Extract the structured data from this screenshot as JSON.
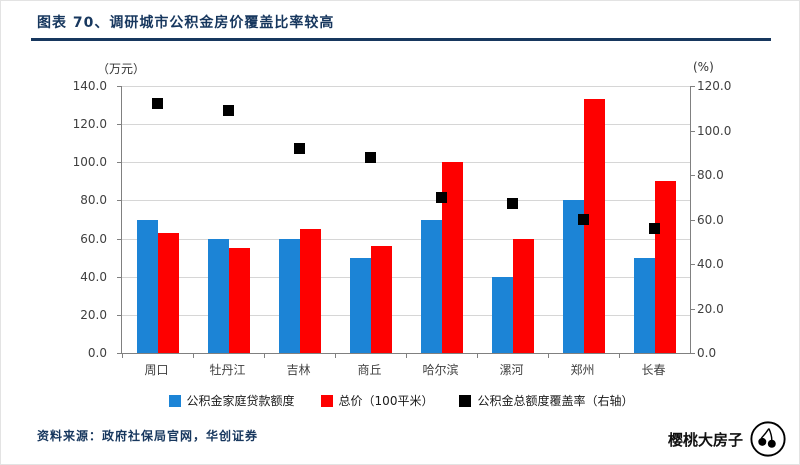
{
  "header": {
    "title": "图表 70、调研城市公积金房价覆盖比率较高"
  },
  "chart_data": {
    "type": "bar",
    "title": "调研城市公积金房价覆盖比率较高",
    "categories": [
      "周口",
      "牡丹江",
      "吉林",
      "商丘",
      "哈尔滨",
      "漯河",
      "郑州",
      "长春"
    ],
    "series": [
      {
        "name": "公积金家庭贷款额度",
        "type": "bar",
        "axis": "left",
        "color": "#1C84D6",
        "values": [
          70,
          60,
          60,
          50,
          70,
          40,
          80,
          50
        ]
      },
      {
        "name": "总价（100平米）",
        "type": "bar",
        "axis": "left",
        "color": "#FE0000",
        "values": [
          63,
          55,
          65,
          56,
          100,
          60,
          133,
          90
        ]
      },
      {
        "name": "公积金总额度覆盖率（右轴）",
        "type": "scatter",
        "axis": "right",
        "color": "#000000",
        "values": [
          112,
          109,
          92,
          88,
          70,
          67,
          60,
          56
        ]
      }
    ],
    "left_axis": {
      "unit": "（万元）",
      "min": 0,
      "max": 140,
      "step": 20,
      "tick_labels": [
        "140.0",
        "120.0",
        "100.0",
        "80.0",
        "60.0",
        "40.0",
        "20.0",
        "0.0"
      ]
    },
    "right_axis": {
      "unit": "(%)",
      "min": 0,
      "max": 120,
      "step": 20,
      "tick_labels": [
        "120.0",
        "100.0",
        "80.0",
        "60.0",
        "40.0",
        "20.0",
        "0.0"
      ]
    },
    "grid": true,
    "legend_position": "bottom"
  },
  "footer": {
    "source": "资料来源：政府社保局官网，华创证券"
  },
  "watermark": {
    "text": "樱桃大房子"
  }
}
